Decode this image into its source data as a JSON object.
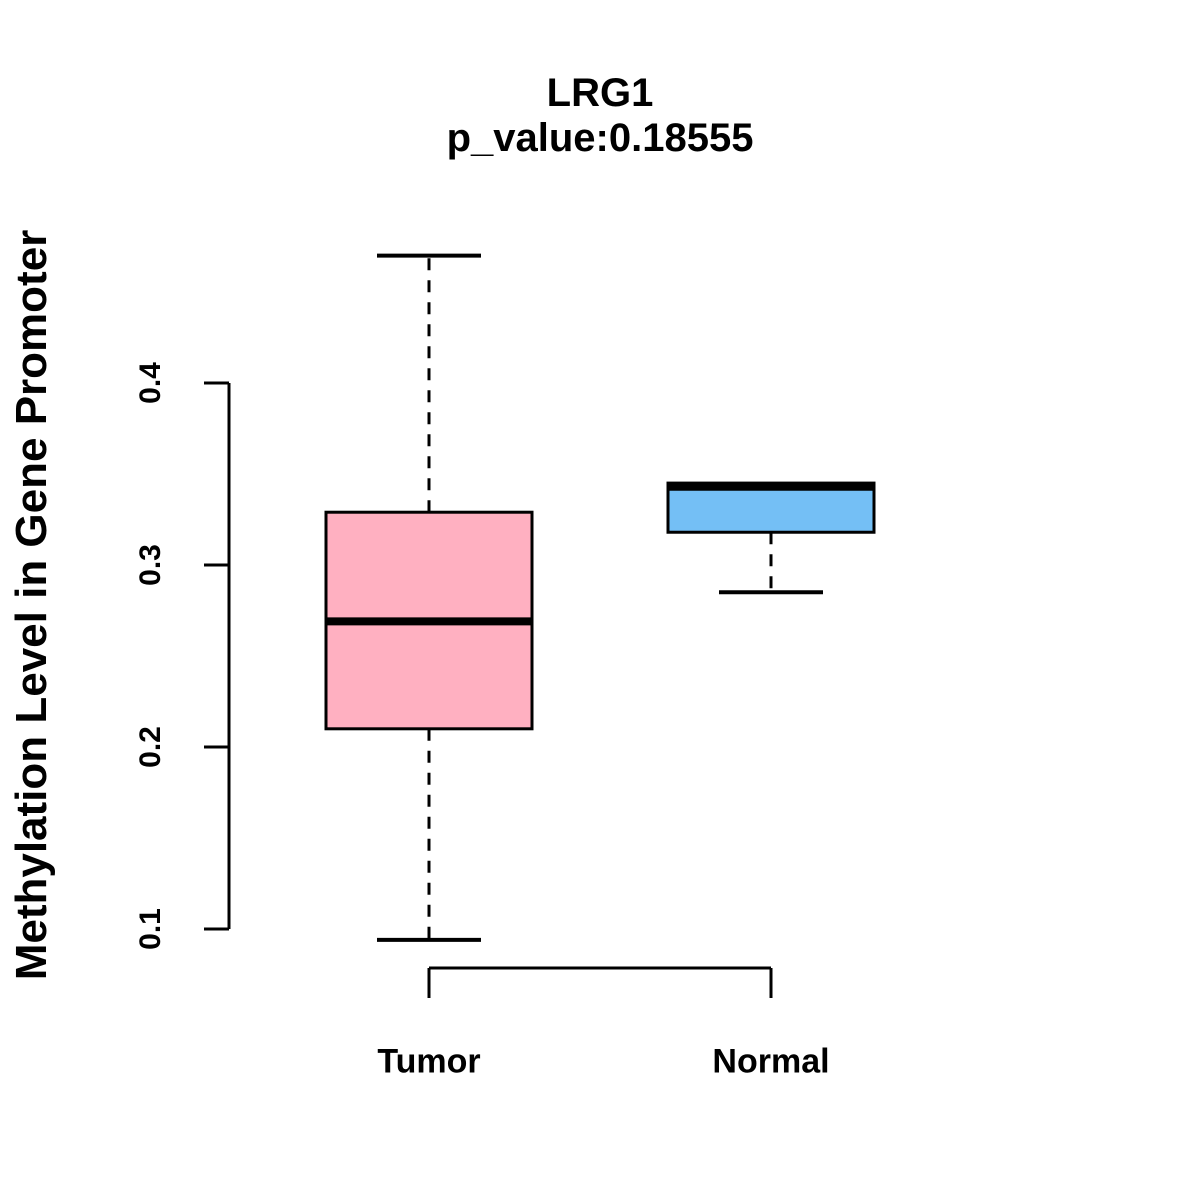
{
  "chart_data": {
    "type": "boxplot",
    "title": "LRG1",
    "subtitle": "p_value:0.18555",
    "p_value": "0.18555",
    "gene": "LRG1",
    "xlabel": "",
    "ylabel": "Methylation Level in Gene Promoter",
    "categories": [
      "Tumor",
      "Normal"
    ],
    "yticks": [
      0.1,
      0.2,
      0.3,
      0.4
    ],
    "ytick_labels": [
      "0.1",
      "0.2",
      "0.3",
      "0.4"
    ],
    "ylim": [
      0.08,
      0.47
    ],
    "grid": "off",
    "legend": "none",
    "series": [
      {
        "name": "Tumor",
        "color": "#FFB0C1",
        "min": 0.094,
        "q1": 0.21,
        "median": 0.269,
        "q3": 0.329,
        "max": 0.47
      },
      {
        "name": "Normal",
        "color": "#74BFF5",
        "min": 0.285,
        "q1": 0.318,
        "median": 0.343,
        "q3": 0.345,
        "max": 0.345
      }
    ],
    "colors": {
      "box_stroke": "#000000",
      "axis": "#000000",
      "tumor_fill": "#FFB0C1",
      "normal_fill": "#74BFF5"
    }
  }
}
